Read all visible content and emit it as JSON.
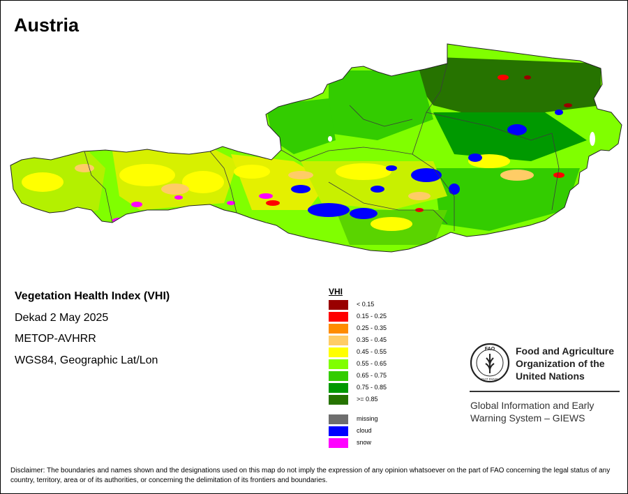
{
  "map": {
    "title": "Austria",
    "info": {
      "index_name": "Vegetation Health Index (VHI)",
      "period": "Dekad 2 May 2025",
      "sensor": "METOP-AVHRR",
      "projection": "WGS84, Geographic Lat/Lon"
    }
  },
  "legend": {
    "title": "VHI",
    "classes": [
      {
        "label": "< 0.15",
        "color": "#990000"
      },
      {
        "label": "0.15 - 0.25",
        "color": "#ff0000"
      },
      {
        "label": "0.25 - 0.35",
        "color": "#ff8c00"
      },
      {
        "label": "0.35 - 0.45",
        "color": "#ffcc66"
      },
      {
        "label": "0.45 - 0.55",
        "color": "#ffff00"
      },
      {
        "label": "0.55 - 0.65",
        "color": "#80ff00"
      },
      {
        "label": "0.65 - 0.75",
        "color": "#33cc00"
      },
      {
        "label": "0.75 - 0.85",
        "color": "#009900"
      },
      {
        "label": ">= 0.85",
        "color": "#267300"
      }
    ],
    "special": [
      {
        "label": "missing",
        "color": "#6e6e6e"
      },
      {
        "label": "cloud",
        "color": "#0000ff"
      },
      {
        "label": "snow",
        "color": "#ff00ff"
      }
    ]
  },
  "organization": {
    "name_lines": [
      "Food and Agriculture",
      "Organization of the",
      "United Nations"
    ],
    "logo_text": "FAO",
    "logo_motto": "FIAT PANIS",
    "program_lines": [
      "Global Information and Early",
      "Warning System – GIEWS"
    ]
  },
  "disclaimer": "Disclaimer: The boundaries and names shown and the designations used on this map do not imply the expression of any opinion whatsoever on the part of FAO concerning the legal status of any country, territory, area or of its authorities, or concerning the delimitation of its frontiers and boundaries."
}
